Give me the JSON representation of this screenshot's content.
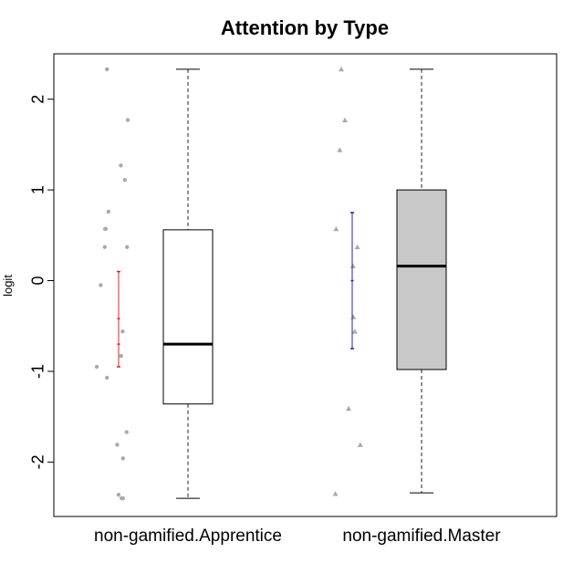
{
  "chart_data": {
    "type": "boxplot",
    "title": "Attention by Type",
    "ylabel": "logit",
    "xlabel": "",
    "ylim": [
      -2.6,
      2.5
    ],
    "yticks": [
      -2,
      -1,
      0,
      1,
      2
    ],
    "ytick_labels": [
      "-2",
      "-1",
      "0",
      "1",
      "2"
    ],
    "categories": [
      "non-gamified.Apprentice",
      "non-gamified.Master"
    ],
    "grid": false,
    "legend": "none",
    "boxes": [
      {
        "name": "non-gamified.Apprentice",
        "fill": "#ffffff",
        "min": -2.4,
        "q1": -1.36,
        "median": -0.7,
        "q3": 0.56,
        "max": 2.33
      },
      {
        "name": "non-gamified.Master",
        "fill": "#c8c8c8",
        "min": -2.34,
        "q1": -0.98,
        "median": 0.16,
        "q3": 1.0,
        "max": 2.33
      }
    ],
    "points": [
      {
        "category": "non-gamified.Apprentice",
        "marker": "circle",
        "color": "#aaaaaa",
        "values": [
          2.33,
          1.77,
          1.27,
          1.11,
          0.76,
          0.57,
          0.57,
          0.37,
          0.37,
          -0.05,
          -0.56,
          -0.83,
          -0.95,
          -1.07,
          -1.67,
          -1.81,
          -1.96,
          -2.36,
          -2.4,
          -2.4
        ],
        "offsets": [
          -0.32,
          0.25,
          0.06,
          0.17,
          -0.28,
          -0.37,
          -0.35,
          -0.38,
          0.23,
          -0.49,
          0.11,
          0.07,
          -0.6,
          -0.32,
          0.22,
          -0.04,
          0.12,
          0.0,
          0.08,
          0.12
        ]
      },
      {
        "category": "non-gamified.Master",
        "marker": "triangle",
        "color": "#aaaaaa",
        "values": [
          2.33,
          1.77,
          1.44,
          0.57,
          0.37,
          0.16,
          -0.4,
          -0.56,
          -1.41,
          -1.81,
          -2.35
        ],
        "offsets": [
          -0.3,
          -0.2,
          -0.34,
          -0.44,
          0.14,
          0.02,
          0.03,
          0.07,
          -0.1,
          0.22,
          -0.46
        ]
      }
    ],
    "error_bars": [
      {
        "category": "non-gamified.Apprentice",
        "color": "#dd2222",
        "low": -0.95,
        "high": 0.1,
        "marks": [
          -0.42,
          -0.7
        ]
      },
      {
        "category": "non-gamified.Master",
        "color": "#2222bb",
        "low": -0.75,
        "high": 0.75,
        "marks": [
          0.0
        ]
      }
    ]
  }
}
